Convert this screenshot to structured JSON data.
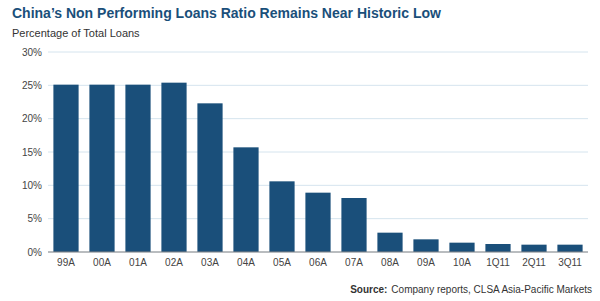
{
  "chart_data": {
    "type": "bar",
    "title": "China’s Non Performing Loans Ratio Remains Near Historic Low",
    "subtitle": "Percentage of Total Loans",
    "source_label": "Source:",
    "source": "Company reports, CLSA Asia-Pacific Markets",
    "categories": [
      "99A",
      "00A",
      "01A",
      "02A",
      "03A",
      "04A",
      "05A",
      "06A",
      "07A",
      "08A",
      "09A",
      "10A",
      "1Q11",
      "2Q11",
      "3Q11"
    ],
    "values": [
      25.1,
      25.1,
      25.1,
      25.4,
      22.3,
      15.7,
      10.6,
      8.9,
      8.1,
      2.9,
      1.9,
      1.4,
      1.2,
      1.1,
      1.1
    ],
    "color": "#1a4f7a",
    "ylim": [
      0,
      30
    ],
    "yticks": [
      {
        "value": 0,
        "label": "0%"
      },
      {
        "value": 5,
        "label": "5%"
      },
      {
        "value": 10,
        "label": "10%"
      },
      {
        "value": 15,
        "label": "15%"
      },
      {
        "value": 20,
        "label": "20%"
      },
      {
        "value": 25,
        "label": "25%"
      },
      {
        "value": 30,
        "label": "30%"
      }
    ],
    "grid": true
  }
}
